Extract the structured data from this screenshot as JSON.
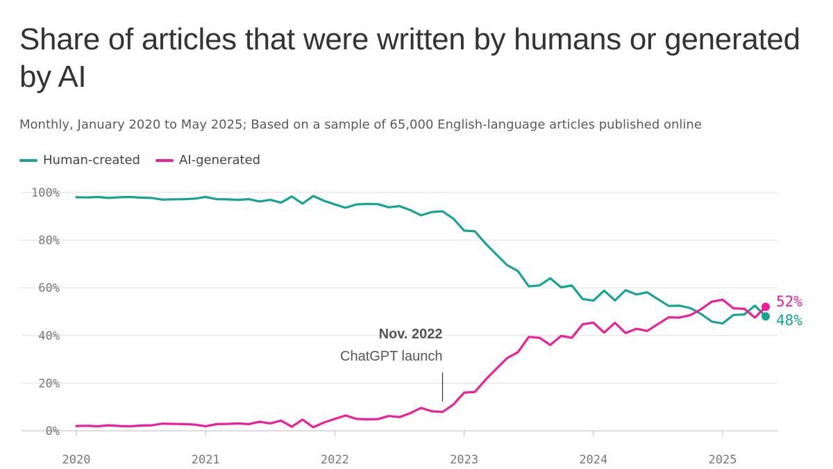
{
  "title": "Share of articles that were written by humans or generated by AI",
  "subtitle": "Monthly, January 2020 to May 2025; Based on a sample of 65,000 English-language articles published online",
  "colors": {
    "human": "#16a394",
    "ai": "#ee1e9b",
    "grid": "#dddddd",
    "axis_text": "#777777"
  },
  "legend": [
    {
      "label": "Human-created",
      "color": "#16a394"
    },
    {
      "label": "AI-generated",
      "color": "#ee1e9b"
    }
  ],
  "annotation": {
    "date": "Nov. 2022",
    "text": "ChatGPT launch",
    "x": 2022.833
  },
  "end_labels": {
    "ai": "52%",
    "human": "48%"
  },
  "chart_data": {
    "type": "line",
    "x_unit": "year",
    "xlim": [
      2020,
      2025.333
    ],
    "ylim": [
      0,
      100
    ],
    "yticks": [
      0,
      20,
      40,
      60,
      80,
      100
    ],
    "ytick_labels": [
      "0%",
      "20%",
      "40%",
      "60%",
      "80%",
      "100%"
    ],
    "xticks": [
      2020,
      2021,
      2022,
      2023,
      2024,
      2025
    ],
    "xtick_labels": [
      "2020",
      "2021",
      "2022",
      "2023",
      "2024",
      "2025"
    ],
    "grid": "horizontal",
    "legend_position": "top-left",
    "series": [
      {
        "name": "Human-created",
        "color": "#16a394",
        "x": [
          2020.0,
          2020.083,
          2020.167,
          2020.25,
          2020.333,
          2020.417,
          2020.5,
          2020.583,
          2020.667,
          2020.75,
          2020.833,
          2020.917,
          2021.0,
          2021.083,
          2021.167,
          2021.25,
          2021.333,
          2021.417,
          2021.5,
          2021.583,
          2021.667,
          2021.75,
          2021.833,
          2021.917,
          2022.0,
          2022.083,
          2022.167,
          2022.25,
          2022.333,
          2022.417,
          2022.5,
          2022.583,
          2022.667,
          2022.75,
          2022.833,
          2022.917,
          2023.0,
          2023.083,
          2023.167,
          2023.25,
          2023.333,
          2023.417,
          2023.5,
          2023.583,
          2023.667,
          2023.75,
          2023.833,
          2023.917,
          2024.0,
          2024.083,
          2024.167,
          2024.25,
          2024.333,
          2024.417,
          2024.5,
          2024.583,
          2024.667,
          2024.75,
          2024.833,
          2024.917,
          2025.0,
          2025.083,
          2025.167,
          2025.25,
          2025.333
        ],
        "y": [
          98,
          97.9,
          98.1,
          97.7,
          98.0,
          98.1,
          97.8,
          97.7,
          97.0,
          97.1,
          97.2,
          97.4,
          98.1,
          97.2,
          97.1,
          96.9,
          97.2,
          96.2,
          96.9,
          95.7,
          98.3,
          95.3,
          98.5,
          96.5,
          95.0,
          93.6,
          95.0,
          95.2,
          95.1,
          93.8,
          94.3,
          92.6,
          90.4,
          91.8,
          92.1,
          89.0,
          84.0,
          83.7,
          78.5,
          74.0,
          69.5,
          67.0,
          60.6,
          61.0,
          64.0,
          60.2,
          61.0,
          55.3,
          54.6,
          58.8,
          54.7,
          59.0,
          57.2,
          58.1,
          55.2,
          52.4,
          52.5,
          51.5,
          49.0,
          45.8,
          45.0,
          48.6,
          48.8,
          52.5,
          48.0
        ]
      },
      {
        "name": "AI-generated",
        "color": "#ee1e9b",
        "x": [
          2020.0,
          2020.083,
          2020.167,
          2020.25,
          2020.333,
          2020.417,
          2020.5,
          2020.583,
          2020.667,
          2020.75,
          2020.833,
          2020.917,
          2021.0,
          2021.083,
          2021.167,
          2021.25,
          2021.333,
          2021.417,
          2021.5,
          2021.583,
          2021.667,
          2021.75,
          2021.833,
          2021.917,
          2022.0,
          2022.083,
          2022.167,
          2022.25,
          2022.333,
          2022.417,
          2022.5,
          2022.583,
          2022.667,
          2022.75,
          2022.833,
          2022.917,
          2023.0,
          2023.083,
          2023.167,
          2023.25,
          2023.333,
          2023.417,
          2023.5,
          2023.583,
          2023.667,
          2023.75,
          2023.833,
          2023.917,
          2024.0,
          2024.083,
          2024.167,
          2024.25,
          2024.333,
          2024.417,
          2024.5,
          2024.583,
          2024.667,
          2024.75,
          2024.833,
          2024.917,
          2025.0,
          2025.083,
          2025.167,
          2025.25,
          2025.333
        ],
        "y": [
          2.0,
          2.1,
          1.9,
          2.3,
          2.0,
          1.9,
          2.2,
          2.3,
          3.0,
          2.9,
          2.8,
          2.6,
          1.9,
          2.8,
          2.9,
          3.1,
          2.8,
          3.8,
          3.1,
          4.3,
          1.7,
          4.7,
          1.5,
          3.5,
          5.0,
          6.4,
          5.0,
          4.8,
          4.9,
          6.2,
          5.7,
          7.4,
          9.6,
          8.2,
          7.9,
          11.0,
          16.0,
          16.3,
          21.5,
          26.0,
          30.5,
          33.0,
          39.4,
          39.0,
          36.0,
          39.8,
          39.0,
          44.7,
          45.4,
          41.2,
          45.3,
          41.0,
          42.8,
          41.9,
          44.8,
          47.6,
          47.5,
          48.5,
          51.0,
          54.2,
          55.0,
          51.4,
          51.2,
          47.5,
          52.0
        ]
      }
    ]
  }
}
